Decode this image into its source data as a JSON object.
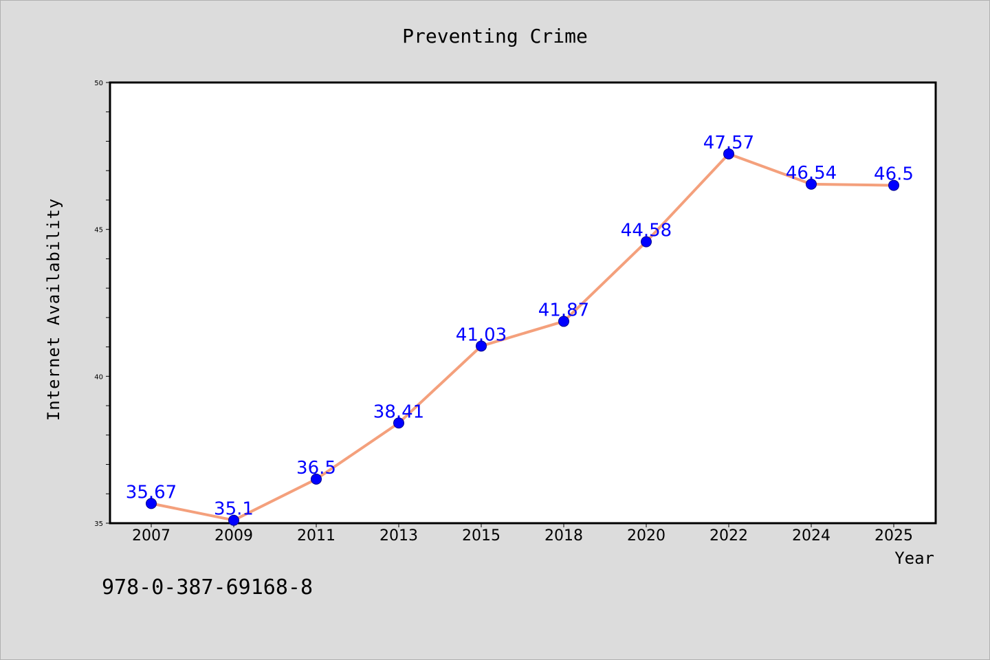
{
  "colors": {
    "background": "#dcdcdc",
    "plot_background": "#ffffff",
    "line": "#f4a07c",
    "marker": "#0000ff",
    "marker_edge": "#00008b",
    "data_label": "#0000ff",
    "text": "#000000"
  },
  "footer": {
    "text": "978-0-387-69168-8"
  },
  "chart_data": {
    "type": "line",
    "title": "Preventing Crime",
    "xlabel": "Year",
    "ylabel": "Internet Availability",
    "categories": [
      "2007",
      "2009",
      "2011",
      "2013",
      "2015",
      "2018",
      "2020",
      "2022",
      "2024",
      "2025"
    ],
    "series": [
      {
        "values": [
          35.67,
          35.1,
          36.5,
          38.41,
          41.03,
          41.87,
          44.58,
          47.57,
          46.54,
          46.5
        ],
        "labels": [
          "35.67",
          "35.1",
          "36.5",
          "38.41",
          "41.03",
          "41.87",
          "44.58",
          "47.57",
          "46.54",
          "46.5"
        ]
      }
    ],
    "ylim": [
      35,
      50
    ],
    "yticks": [
      "35",
      "40",
      "45",
      "50"
    ],
    "grid": false,
    "legend": false
  }
}
